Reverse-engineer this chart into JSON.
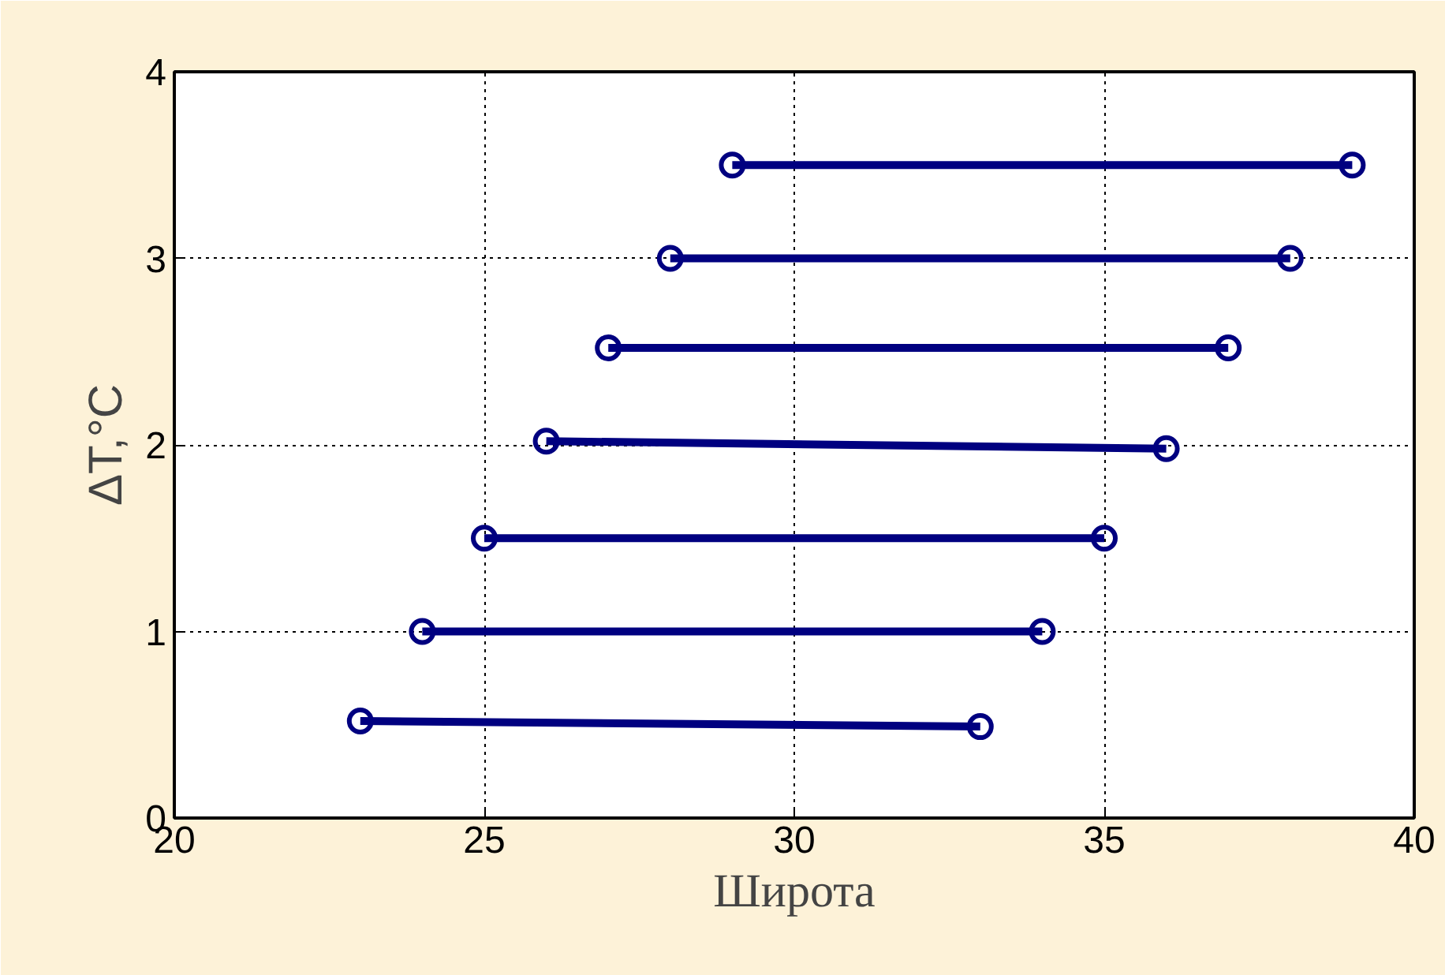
{
  "chart_data": {
    "type": "line",
    "xlabel": "Широта",
    "ylabel": "ΔT,°C",
    "xlim": [
      20,
      40
    ],
    "xticks": [
      20,
      25,
      30,
      35,
      40
    ],
    "ylim": [
      0,
      4
    ],
    "yticks": [
      0,
      1,
      2,
      3,
      4
    ],
    "grid": true,
    "marker": "circle",
    "line_style": "solid",
    "series": [
      {
        "color": "#000080",
        "x": [
          23,
          33
        ],
        "values": [
          0.52,
          0.49
        ]
      },
      {
        "color": "#000080",
        "x": [
          24,
          34
        ],
        "values": [
          1.0,
          1.0
        ]
      },
      {
        "color": "#000080",
        "x": [
          25,
          35
        ],
        "values": [
          1.5,
          1.5
        ]
      },
      {
        "color": "#000080",
        "x": [
          26,
          36
        ],
        "values": [
          2.02,
          1.98
        ]
      },
      {
        "color": "#000080",
        "x": [
          27,
          37
        ],
        "values": [
          2.52,
          2.52
        ]
      },
      {
        "color": "#000080",
        "x": [
          28,
          38
        ],
        "values": [
          3.0,
          3.0
        ]
      },
      {
        "color": "#000080",
        "x": [
          29,
          39
        ],
        "values": [
          3.5,
          3.5
        ]
      }
    ]
  }
}
